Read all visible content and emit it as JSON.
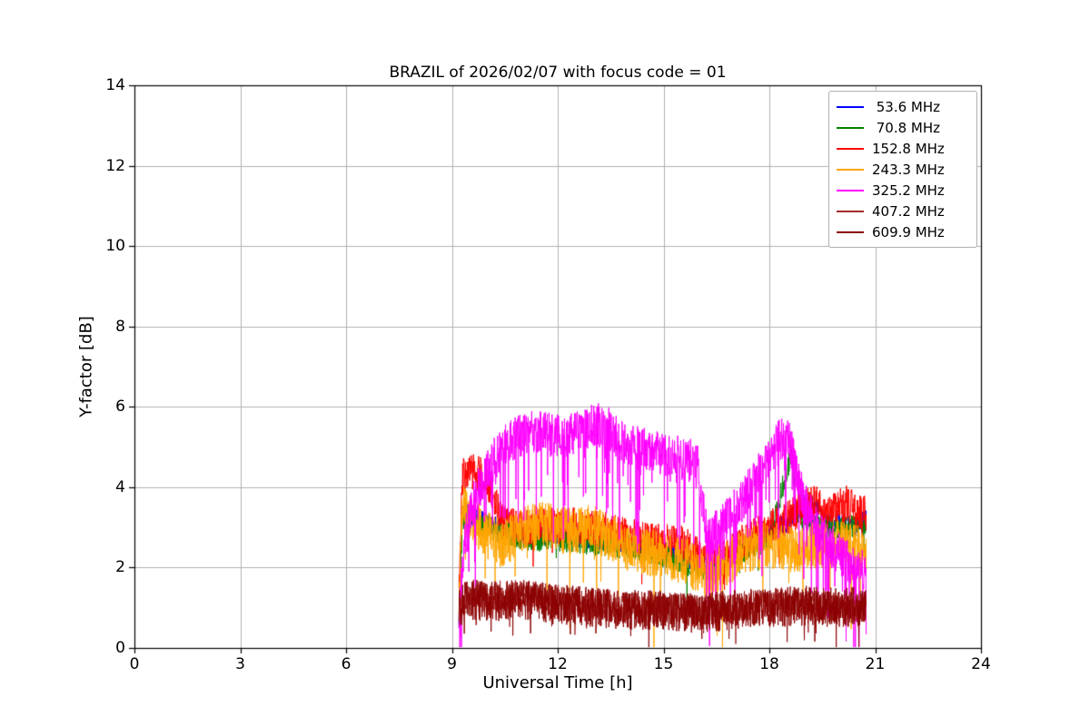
{
  "chart_data": {
    "type": "line",
    "title": "BRAZIL of 2026/02/07 with focus code = 01",
    "xlabel": "Universal Time [h]",
    "ylabel": "Y-factor [dB]",
    "xlim": [
      0,
      24
    ],
    "ylim": [
      0,
      14
    ],
    "xticks": [
      0,
      3,
      6,
      9,
      12,
      15,
      18,
      21,
      24
    ],
    "yticks": [
      0,
      2,
      4,
      6,
      8,
      10,
      12,
      14
    ],
    "grid": true,
    "grid_color": "#b0b0b0",
    "axis_color": "#000000",
    "legend_position": "upper right",
    "sample_step": 0.008,
    "series": [
      {
        "name": " 53.6 MHz",
        "color": "#0000ff",
        "noise_amp": 0.25,
        "dip_prob": 0.0,
        "dip_depth": 0,
        "points": [
          [
            9.2,
            0.8
          ],
          [
            9.3,
            3.4
          ],
          [
            10,
            3.1
          ],
          [
            11,
            2.8
          ],
          [
            12,
            2.8
          ],
          [
            13,
            2.7
          ],
          [
            14,
            2.6
          ],
          [
            15,
            2.4
          ],
          [
            16,
            2.1
          ],
          [
            16.5,
            2.0
          ],
          [
            17,
            2.4
          ],
          [
            18,
            2.9
          ],
          [
            18.5,
            3.1
          ],
          [
            19,
            3.6
          ],
          [
            19.3,
            3.5
          ],
          [
            19.6,
            3.1
          ],
          [
            20,
            3.1
          ],
          [
            20.4,
            3.0
          ],
          [
            20.75,
            3.2
          ]
        ]
      },
      {
        "name": " 70.8 MHz",
        "color": "#008000",
        "noise_amp": 0.3,
        "dip_prob": 0.01,
        "dip_depth": 0.8,
        "points": [
          [
            9.2,
            0.6
          ],
          [
            9.3,
            3.2
          ],
          [
            10,
            3.0
          ],
          [
            11,
            2.7
          ],
          [
            12,
            2.7
          ],
          [
            13,
            2.6
          ],
          [
            14,
            2.5
          ],
          [
            15,
            2.3
          ],
          [
            16,
            2.0
          ],
          [
            16.5,
            1.9
          ],
          [
            17,
            2.3
          ],
          [
            18,
            2.7
          ],
          [
            18.55,
            4.6
          ],
          [
            18.65,
            4.9
          ],
          [
            18.75,
            3.4
          ],
          [
            19,
            3.1
          ],
          [
            19.5,
            3.0
          ],
          [
            20,
            3.0
          ],
          [
            20.75,
            3.1
          ]
        ]
      },
      {
        "name": "152.8 MHz",
        "color": "#ff0000",
        "noise_amp": 0.45,
        "dip_prob": 0.02,
        "dip_depth": 1.0,
        "points": [
          [
            9.2,
            1.2
          ],
          [
            9.3,
            4.3
          ],
          [
            9.6,
            4.4
          ],
          [
            9.9,
            4.3
          ],
          [
            10.1,
            3.9
          ],
          [
            10.4,
            3.2
          ],
          [
            10.8,
            3.0
          ],
          [
            11.2,
            3.0
          ],
          [
            11.6,
            3.1
          ],
          [
            12,
            3.0
          ],
          [
            12.5,
            3.05
          ],
          [
            13,
            3.0
          ],
          [
            13.5,
            2.9
          ],
          [
            14,
            2.8
          ],
          [
            14.5,
            2.7
          ],
          [
            15,
            2.65
          ],
          [
            15.5,
            2.6
          ],
          [
            16,
            2.35
          ],
          [
            16.3,
            2.05
          ],
          [
            16.6,
            2.2
          ],
          [
            17,
            2.5
          ],
          [
            17.5,
            2.75
          ],
          [
            18,
            3.0
          ],
          [
            18.5,
            3.2
          ],
          [
            19,
            3.5
          ],
          [
            19.3,
            3.65
          ],
          [
            19.6,
            3.3
          ],
          [
            19.9,
            3.5
          ],
          [
            20.2,
            3.6
          ],
          [
            20.5,
            3.4
          ],
          [
            20.75,
            3.35
          ]
        ]
      },
      {
        "name": "243.3 MHz",
        "color": "#ffa500",
        "noise_amp": 0.6,
        "dip_prob": 0.03,
        "dip_depth": 2.2,
        "points": [
          [
            9.2,
            1.0
          ],
          [
            9.3,
            3.5
          ],
          [
            9.6,
            3.2
          ],
          [
            10,
            2.8
          ],
          [
            10.4,
            2.6
          ],
          [
            10.8,
            2.8
          ],
          [
            11.2,
            3.0
          ],
          [
            11.6,
            3.05
          ],
          [
            12,
            2.95
          ],
          [
            12.5,
            2.9
          ],
          [
            13,
            3.0
          ],
          [
            13.5,
            2.75
          ],
          [
            14,
            2.5
          ],
          [
            14.5,
            2.4
          ],
          [
            15,
            2.3
          ],
          [
            15.5,
            2.2
          ],
          [
            16,
            1.95
          ],
          [
            16.3,
            1.75
          ],
          [
            16.7,
            2.0
          ],
          [
            17,
            2.2
          ],
          [
            17.5,
            2.5
          ],
          [
            18,
            2.6
          ],
          [
            18.5,
            2.45
          ],
          [
            19,
            2.5
          ],
          [
            19.5,
            2.6
          ],
          [
            20,
            2.6
          ],
          [
            20.4,
            2.5
          ],
          [
            20.75,
            2.4
          ]
        ]
      },
      {
        "name": "325.2 MHz",
        "color": "#ff00ff",
        "noise_amp": 0.55,
        "dip_prob": 0.1,
        "dip_depth": 2.4,
        "points": [
          [
            9.2,
            0.7
          ],
          [
            9.35,
            2.6
          ],
          [
            9.6,
            3.6
          ],
          [
            9.9,
            4.3
          ],
          [
            10.2,
            4.7
          ],
          [
            10.5,
            5.0
          ],
          [
            10.8,
            5.2
          ],
          [
            11.1,
            5.35
          ],
          [
            11.5,
            5.4
          ],
          [
            11.9,
            5.25
          ],
          [
            12.3,
            5.3
          ],
          [
            12.7,
            5.45
          ],
          [
            13.1,
            5.55
          ],
          [
            13.4,
            5.5
          ],
          [
            13.7,
            5.2
          ],
          [
            14,
            5.05
          ],
          [
            14.4,
            4.95
          ],
          [
            14.8,
            4.85
          ],
          [
            15.2,
            4.8
          ],
          [
            15.6,
            4.7
          ],
          [
            15.95,
            4.6
          ],
          [
            16.1,
            3.6
          ],
          [
            16.25,
            2.7
          ],
          [
            16.5,
            2.9
          ],
          [
            16.8,
            3.2
          ],
          [
            17.1,
            3.5
          ],
          [
            17.4,
            3.9
          ],
          [
            17.7,
            4.3
          ],
          [
            18,
            4.8
          ],
          [
            18.25,
            5.1
          ],
          [
            18.45,
            5.35
          ],
          [
            18.6,
            5.0
          ],
          [
            18.8,
            4.2
          ],
          [
            19,
            3.6
          ],
          [
            19.3,
            3.0
          ],
          [
            19.6,
            2.65
          ],
          [
            19.9,
            2.4
          ],
          [
            20.2,
            2.2
          ],
          [
            20.5,
            2.0
          ],
          [
            20.75,
            1.85
          ]
        ]
      },
      {
        "name": "407.2 MHz",
        "color": "#a52a2a",
        "noise_amp": 0.4,
        "dip_prob": 0.02,
        "dip_depth": 0.7,
        "points": [
          [
            9.2,
            1.0
          ],
          [
            9.4,
            1.35
          ],
          [
            10,
            1.25
          ],
          [
            10.5,
            1.3
          ],
          [
            11,
            1.3
          ],
          [
            11.5,
            1.25
          ],
          [
            12,
            1.2
          ],
          [
            12.5,
            1.15
          ],
          [
            13,
            1.1
          ],
          [
            13.5,
            1.05
          ],
          [
            14,
            1.0
          ],
          [
            14.5,
            1.0
          ],
          [
            15,
            1.0
          ],
          [
            15.5,
            0.95
          ],
          [
            16,
            0.9
          ],
          [
            16.5,
            0.95
          ],
          [
            17,
            1.0
          ],
          [
            17.5,
            1.05
          ],
          [
            18,
            1.1
          ],
          [
            18.5,
            1.1
          ],
          [
            19,
            1.1
          ],
          [
            19.5,
            1.05
          ],
          [
            20,
            1.0
          ],
          [
            20.4,
            1.0
          ],
          [
            20.75,
            1.05
          ]
        ]
      },
      {
        "name": "609.9 MHz",
        "color": "#8b0000",
        "noise_amp": 0.5,
        "dip_prob": 0.02,
        "dip_depth": 0.8,
        "points": [
          [
            9.2,
            0.9
          ],
          [
            9.4,
            1.25
          ],
          [
            10,
            1.15
          ],
          [
            11,
            1.2
          ],
          [
            12,
            1.1
          ],
          [
            13,
            1.0
          ],
          [
            14,
            0.95
          ],
          [
            15,
            0.95
          ],
          [
            16,
            0.85
          ],
          [
            17,
            0.95
          ],
          [
            18,
            1.0
          ],
          [
            19,
            1.05
          ],
          [
            20,
            1.0
          ],
          [
            20.75,
            1.05
          ]
        ]
      }
    ]
  }
}
